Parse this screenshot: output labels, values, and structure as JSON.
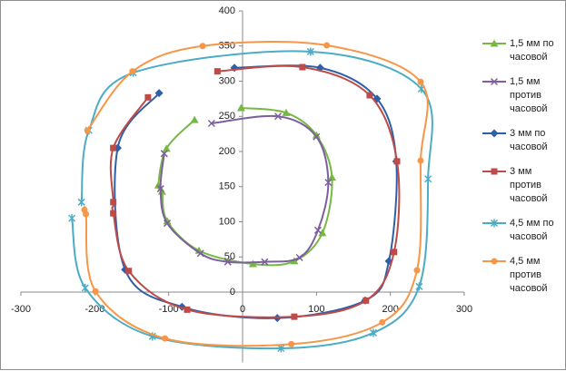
{
  "chart_data": {
    "type": "scatter",
    "xlim": [
      -300,
      300
    ],
    "xticks": [
      -300,
      -200,
      -100,
      0,
      100,
      200,
      300
    ],
    "ylim": [
      -100,
      400
    ],
    "yticks": [
      0,
      50,
      100,
      150,
      200,
      250,
      300,
      350,
      400
    ],
    "smooth": true,
    "grid": false,
    "legend": "right",
    "series": [
      {
        "name": "1,5 мм по часовой",
        "color": "#77b843",
        "marker": "triangle",
        "x": [
          -2,
          59,
          100,
          121,
          108,
          70,
          14,
          -59,
          -102,
          -109,
          -114,
          -103,
          -65
        ],
        "y": [
          262,
          255,
          223,
          163,
          84,
          44,
          40,
          59,
          101,
          143,
          152,
          204,
          245
        ]
      },
      {
        "name": "1,5 мм против часовой",
        "color": "#7d5fa0",
        "marker": "x",
        "x": [
          -42,
          48,
          100,
          116,
          102,
          77,
          30,
          -20,
          -57,
          -102,
          -111,
          -106
        ],
        "y": [
          240,
          250,
          221,
          156,
          88,
          49,
          43,
          43,
          55,
          98,
          147,
          197
        ]
      },
      {
        "name": "3 мм по часовой",
        "color": "#2e5fa8",
        "marker": "diamond",
        "x": [
          -11,
          105,
          182,
          208,
          198,
          166,
          47,
          -82,
          -159,
          -169,
          -113
        ],
        "y": [
          319,
          319,
          275,
          186,
          44,
          -12,
          -37,
          -21,
          32,
          205,
          283
        ]
      },
      {
        "name": "3 мм против часовой",
        "color": "#be4b48",
        "marker": "square",
        "x": [
          -34,
          81,
          172,
          209,
          205,
          167,
          70,
          -75,
          -154,
          -175,
          -175,
          -175,
          -128
        ],
        "y": [
          314,
          320,
          280,
          186,
          57,
          -12,
          -35,
          -25,
          30,
          112,
          128,
          205,
          277
        ]
      },
      {
        "name": "4,5 мм по часовой",
        "color": "#4bacc6",
        "marker": "star",
        "x": [
          -231,
          -213,
          -122,
          52,
          177,
          239,
          251,
          242,
          92,
          -148,
          -208,
          -218
        ],
        "y": [
          105,
          6,
          -63,
          -80,
          -58,
          8,
          161,
          289,
          342,
          312,
          230,
          128
        ]
      },
      {
        "name": "4,5 мм против часовой",
        "color": "#f79646",
        "marker": "circle",
        "x": [
          -214,
          -212,
          -199,
          -105,
          66,
          189,
          236,
          241,
          241,
          114,
          -54,
          -149,
          -210
        ],
        "y": [
          117,
          111,
          1,
          -66,
          -74,
          -43,
          31,
          187,
          299,
          351,
          350,
          314,
          230
        ]
      }
    ]
  }
}
